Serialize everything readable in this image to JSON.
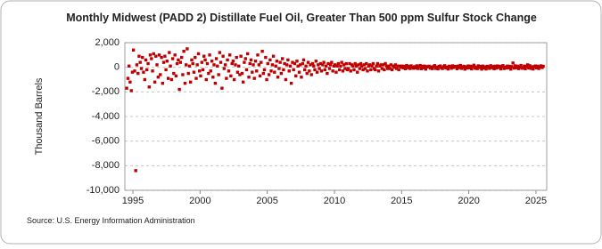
{
  "chart_data": {
    "type": "scatter",
    "title": "Monthly Midwest (PADD 2) Distillate Fuel Oil, Greater Than 500 ppm Sulfur Stock Change",
    "y_label": "Thousand Barrels",
    "source": "Source: U.S. Energy Information Administration",
    "color": "#c00000",
    "grid": true,
    "xlim": [
      1994.4,
      2025.8
    ],
    "ylim": [
      -10000,
      2000
    ],
    "xticks": [
      1995,
      2000,
      2005,
      2010,
      2015,
      2020,
      2025
    ],
    "yticks": [
      {
        "value": -10000,
        "label": "-10,000"
      },
      {
        "value": -8000,
        "label": "-8,000"
      },
      {
        "value": -6000,
        "label": "-6,000"
      },
      {
        "value": -4000,
        "label": "-4,000"
      },
      {
        "value": -2000,
        "label": "-2,000"
      },
      0,
      {
        "value": 2000,
        "label": "2,000"
      }
    ],
    "x": [
      1994.54,
      1994.63,
      1994.71,
      1994.79,
      1994.88,
      1994.96,
      1995.04,
      1995.13,
      1995.21,
      1995.29,
      1995.38,
      1995.46,
      1995.54,
      1995.63,
      1995.71,
      1995.79,
      1995.88,
      1995.96,
      1996.04,
      1996.13,
      1996.21,
      1996.29,
      1996.38,
      1996.46,
      1996.54,
      1996.63,
      1996.71,
      1996.79,
      1996.88,
      1996.96,
      1997.04,
      1997.13,
      1997.21,
      1997.29,
      1997.38,
      1997.46,
      1997.54,
      1997.63,
      1997.71,
      1997.79,
      1997.88,
      1997.96,
      1998.04,
      1998.13,
      1998.21,
      1998.29,
      1998.38,
      1998.46,
      1998.54,
      1998.63,
      1998.71,
      1998.79,
      1998.88,
      1998.96,
      1999.04,
      1999.13,
      1999.21,
      1999.29,
      1999.38,
      1999.46,
      1999.54,
      1999.63,
      1999.71,
      1999.79,
      1999.88,
      1999.96,
      2000.04,
      2000.13,
      2000.21,
      2000.29,
      2000.38,
      2000.46,
      2000.54,
      2000.63,
      2000.71,
      2000.79,
      2000.88,
      2000.96,
      2001.04,
      2001.13,
      2001.21,
      2001.29,
      2001.38,
      2001.46,
      2001.54,
      2001.63,
      2001.71,
      2001.79,
      2001.88,
      2001.96,
      2002.04,
      2002.13,
      2002.21,
      2002.29,
      2002.38,
      2002.46,
      2002.54,
      2002.63,
      2002.71,
      2002.79,
      2002.88,
      2002.96,
      2003.04,
      2003.13,
      2003.21,
      2003.29,
      2003.38,
      2003.46,
      2003.54,
      2003.63,
      2003.71,
      2003.79,
      2003.88,
      2003.96,
      2004.04,
      2004.13,
      2004.21,
      2004.29,
      2004.38,
      2004.46,
      2004.54,
      2004.63,
      2004.71,
      2004.79,
      2004.88,
      2004.96,
      2005.04,
      2005.13,
      2005.21,
      2005.29,
      2005.38,
      2005.46,
      2005.54,
      2005.63,
      2005.71,
      2005.79,
      2005.88,
      2005.96,
      2006.04,
      2006.13,
      2006.21,
      2006.29,
      2006.38,
      2006.46,
      2006.54,
      2006.63,
      2006.71,
      2006.79,
      2006.88,
      2006.96,
      2007.04,
      2007.13,
      2007.21,
      2007.29,
      2007.38,
      2007.46,
      2007.54,
      2007.63,
      2007.71,
      2007.79,
      2007.88,
      2007.96,
      2008.04,
      2008.13,
      2008.21,
      2008.29,
      2008.38,
      2008.46,
      2008.54,
      2008.63,
      2008.71,
      2008.79,
      2008.88,
      2008.96,
      2009.04,
      2009.13,
      2009.21,
      2009.29,
      2009.38,
      2009.46,
      2009.54,
      2009.63,
      2009.71,
      2009.79,
      2009.88,
      2009.96,
      2010.04,
      2010.13,
      2010.21,
      2010.29,
      2010.38,
      2010.46,
      2010.54,
      2010.63,
      2010.71,
      2010.79,
      2010.88,
      2010.96,
      2011.04,
      2011.13,
      2011.21,
      2011.29,
      2011.38,
      2011.46,
      2011.54,
      2011.63,
      2011.71,
      2011.79,
      2011.88,
      2011.96,
      2012.04,
      2012.13,
      2012.21,
      2012.29,
      2012.38,
      2012.46,
      2012.54,
      2012.63,
      2012.71,
      2012.79,
      2012.88,
      2012.96,
      2013.04,
      2013.13,
      2013.21,
      2013.29,
      2013.38,
      2013.46,
      2013.54,
      2013.63,
      2013.71,
      2013.79,
      2013.88,
      2013.96,
      2014.04,
      2014.13,
      2014.21,
      2014.29,
      2014.38,
      2014.46,
      2014.54,
      2014.63,
      2014.71,
      2014.79,
      2014.88,
      2014.96,
      2015.04,
      2015.13,
      2015.21,
      2015.29,
      2015.38,
      2015.46,
      2015.54,
      2015.63,
      2015.71,
      2015.79,
      2015.88,
      2015.96,
      2016.04,
      2016.13,
      2016.21,
      2016.29,
      2016.38,
      2016.46,
      2016.54,
      2016.63,
      2016.71,
      2016.79,
      2016.88,
      2016.96,
      2017.04,
      2017.13,
      2017.21,
      2017.29,
      2017.38,
      2017.46,
      2017.54,
      2017.63,
      2017.71,
      2017.79,
      2017.88,
      2017.96,
      2018.04,
      2018.13,
      2018.21,
      2018.29,
      2018.38,
      2018.46,
      2018.54,
      2018.63,
      2018.71,
      2018.79,
      2018.88,
      2018.96,
      2019.04,
      2019.13,
      2019.21,
      2019.29,
      2019.38,
      2019.46,
      2019.54,
      2019.63,
      2019.71,
      2019.79,
      2019.88,
      2019.96,
      2020.04,
      2020.13,
      2020.21,
      2020.29,
      2020.38,
      2020.46,
      2020.54,
      2020.63,
      2020.71,
      2020.79,
      2020.88,
      2020.96,
      2021.04,
      2021.13,
      2021.21,
      2021.29,
      2021.38,
      2021.46,
      2021.54,
      2021.63,
      2021.71,
      2021.79,
      2021.88,
      2021.96,
      2022.04,
      2022.13,
      2022.21,
      2022.29,
      2022.38,
      2022.46,
      2022.54,
      2022.63,
      2022.71,
      2022.79,
      2022.88,
      2022.96,
      2023.04,
      2023.13,
      2023.21,
      2023.29,
      2023.38,
      2023.46,
      2023.54,
      2023.63,
      2023.71,
      2023.79,
      2023.88,
      2023.96,
      2024.04,
      2024.13,
      2024.21,
      2024.29,
      2024.38,
      2024.46,
      2024.54,
      2024.63,
      2024.71,
      2024.79,
      2024.88,
      2024.96,
      2025.04,
      2025.13,
      2025.21,
      2025.29,
      2025.38,
      2025.46,
      2025.54
    ],
    "values": [
      -1700,
      -900,
      100,
      -1200,
      -1900,
      -400,
      1400,
      -300,
      -8400,
      200,
      -500,
      900,
      400,
      -100,
      800,
      -400,
      -1000,
      600,
      -200,
      300,
      -1600,
      1000,
      700,
      -300,
      1100,
      -1200,
      900,
      200,
      -800,
      1000,
      -600,
      800,
      -1300,
      400,
      900,
      -200,
      500,
      -900,
      1200,
      100,
      -1000,
      700,
      -500,
      1000,
      -700,
      300,
      600,
      -1800,
      400,
      800,
      -600,
      1300,
      -1300,
      200,
      1500,
      -500,
      100,
      -1200,
      600,
      300,
      -400,
      800,
      -900,
      200,
      1100,
      -300,
      -700,
      400,
      -200,
      900,
      600,
      -1000,
      300,
      -500,
      1000,
      -300,
      500,
      -800,
      200,
      -1300,
      700,
      100,
      -600,
      1200,
      400,
      -1700,
      900,
      -100,
      200,
      -900,
      600,
      -300,
      1000,
      -700,
      300,
      500,
      -1000,
      200,
      800,
      -400,
      100,
      -600,
      900,
      -500,
      -1200,
      400,
      700,
      -200,
      1100,
      -800,
      300,
      600,
      -400,
      200,
      -900,
      500,
      -300,
      1000,
      200,
      -700,
      400,
      1300,
      -500,
      -200,
      800,
      -1000,
      300,
      -600,
      600,
      -300,
      200,
      900,
      -400,
      100,
      500,
      -800,
      -100,
      400,
      -500,
      700,
      -200,
      300,
      -1000,
      200,
      600,
      -300,
      100,
      -1300,
      400,
      -200,
      300,
      -700,
      500,
      100,
      -400,
      200,
      -800,
      300,
      600,
      -200,
      100,
      -500,
      400,
      -300,
      200,
      -600,
      300,
      100,
      -200,
      500,
      -400,
      200,
      -100,
      300,
      -300,
      200,
      400,
      -200,
      100,
      -500,
      300,
      -100,
      200,
      400,
      -300,
      100,
      200,
      -400,
      100,
      300,
      -200,
      100,
      400,
      -300,
      200,
      -100,
      300,
      -200,
      -100,
      300,
      -300,
      200,
      100,
      -200,
      300,
      100,
      -400,
      200,
      -100,
      300,
      100,
      -200,
      200,
      -100,
      300,
      -300,
      100,
      200,
      -200,
      100,
      300,
      -100,
      -200,
      100,
      300,
      -300,
      100,
      200,
      -100,
      200,
      -200,
      300,
      100,
      -100,
      100,
      -100,
      200,
      -200,
      100,
      0,
      200,
      -100,
      100,
      -200,
      100,
      0,
      100,
      -50,
      80,
      -120,
      150,
      -30,
      60,
      -100,
      120,
      0,
      -80,
      50,
      -60,
      120,
      -100,
      40,
      150,
      -120,
      80,
      -40,
      100,
      -150,
      30,
      60,
      90,
      -70,
      30,
      -110,
      60,
      140,
      -90,
      20,
      -130,
      70,
      110,
      -40,
      -100,
      50,
      130,
      -60,
      20,
      -140,
      90,
      40,
      -80,
      120,
      -20,
      70,
      60,
      -120,
      100,
      -30,
      150,
      -90,
      10,
      80,
      -150,
      40,
      -60,
      110,
      -40,
      90,
      -130,
      60,
      170,
      -80,
      30,
      -110,
      120,
      -20,
      70,
      -150,
      100,
      -60,
      40,
      -140,
      80,
      20,
      -90,
      130,
      -30,
      60,
      -120,
      90,
      -70,
      110,
      -20,
      80,
      -130,
      50,
      140,
      -100,
      30,
      -60,
      100,
      -40,
      80,
      -150,
      60,
      350,
      -70,
      120,
      -40,
      90,
      -110,
      30,
      150,
      -80,
      -30,
      100,
      -120,
      70,
      200,
      -60,
      130,
      -90,
      40,
      -140,
      60,
      110,
      -50,
      90,
      -100,
      40,
      120,
      -20,
      80
    ]
  }
}
